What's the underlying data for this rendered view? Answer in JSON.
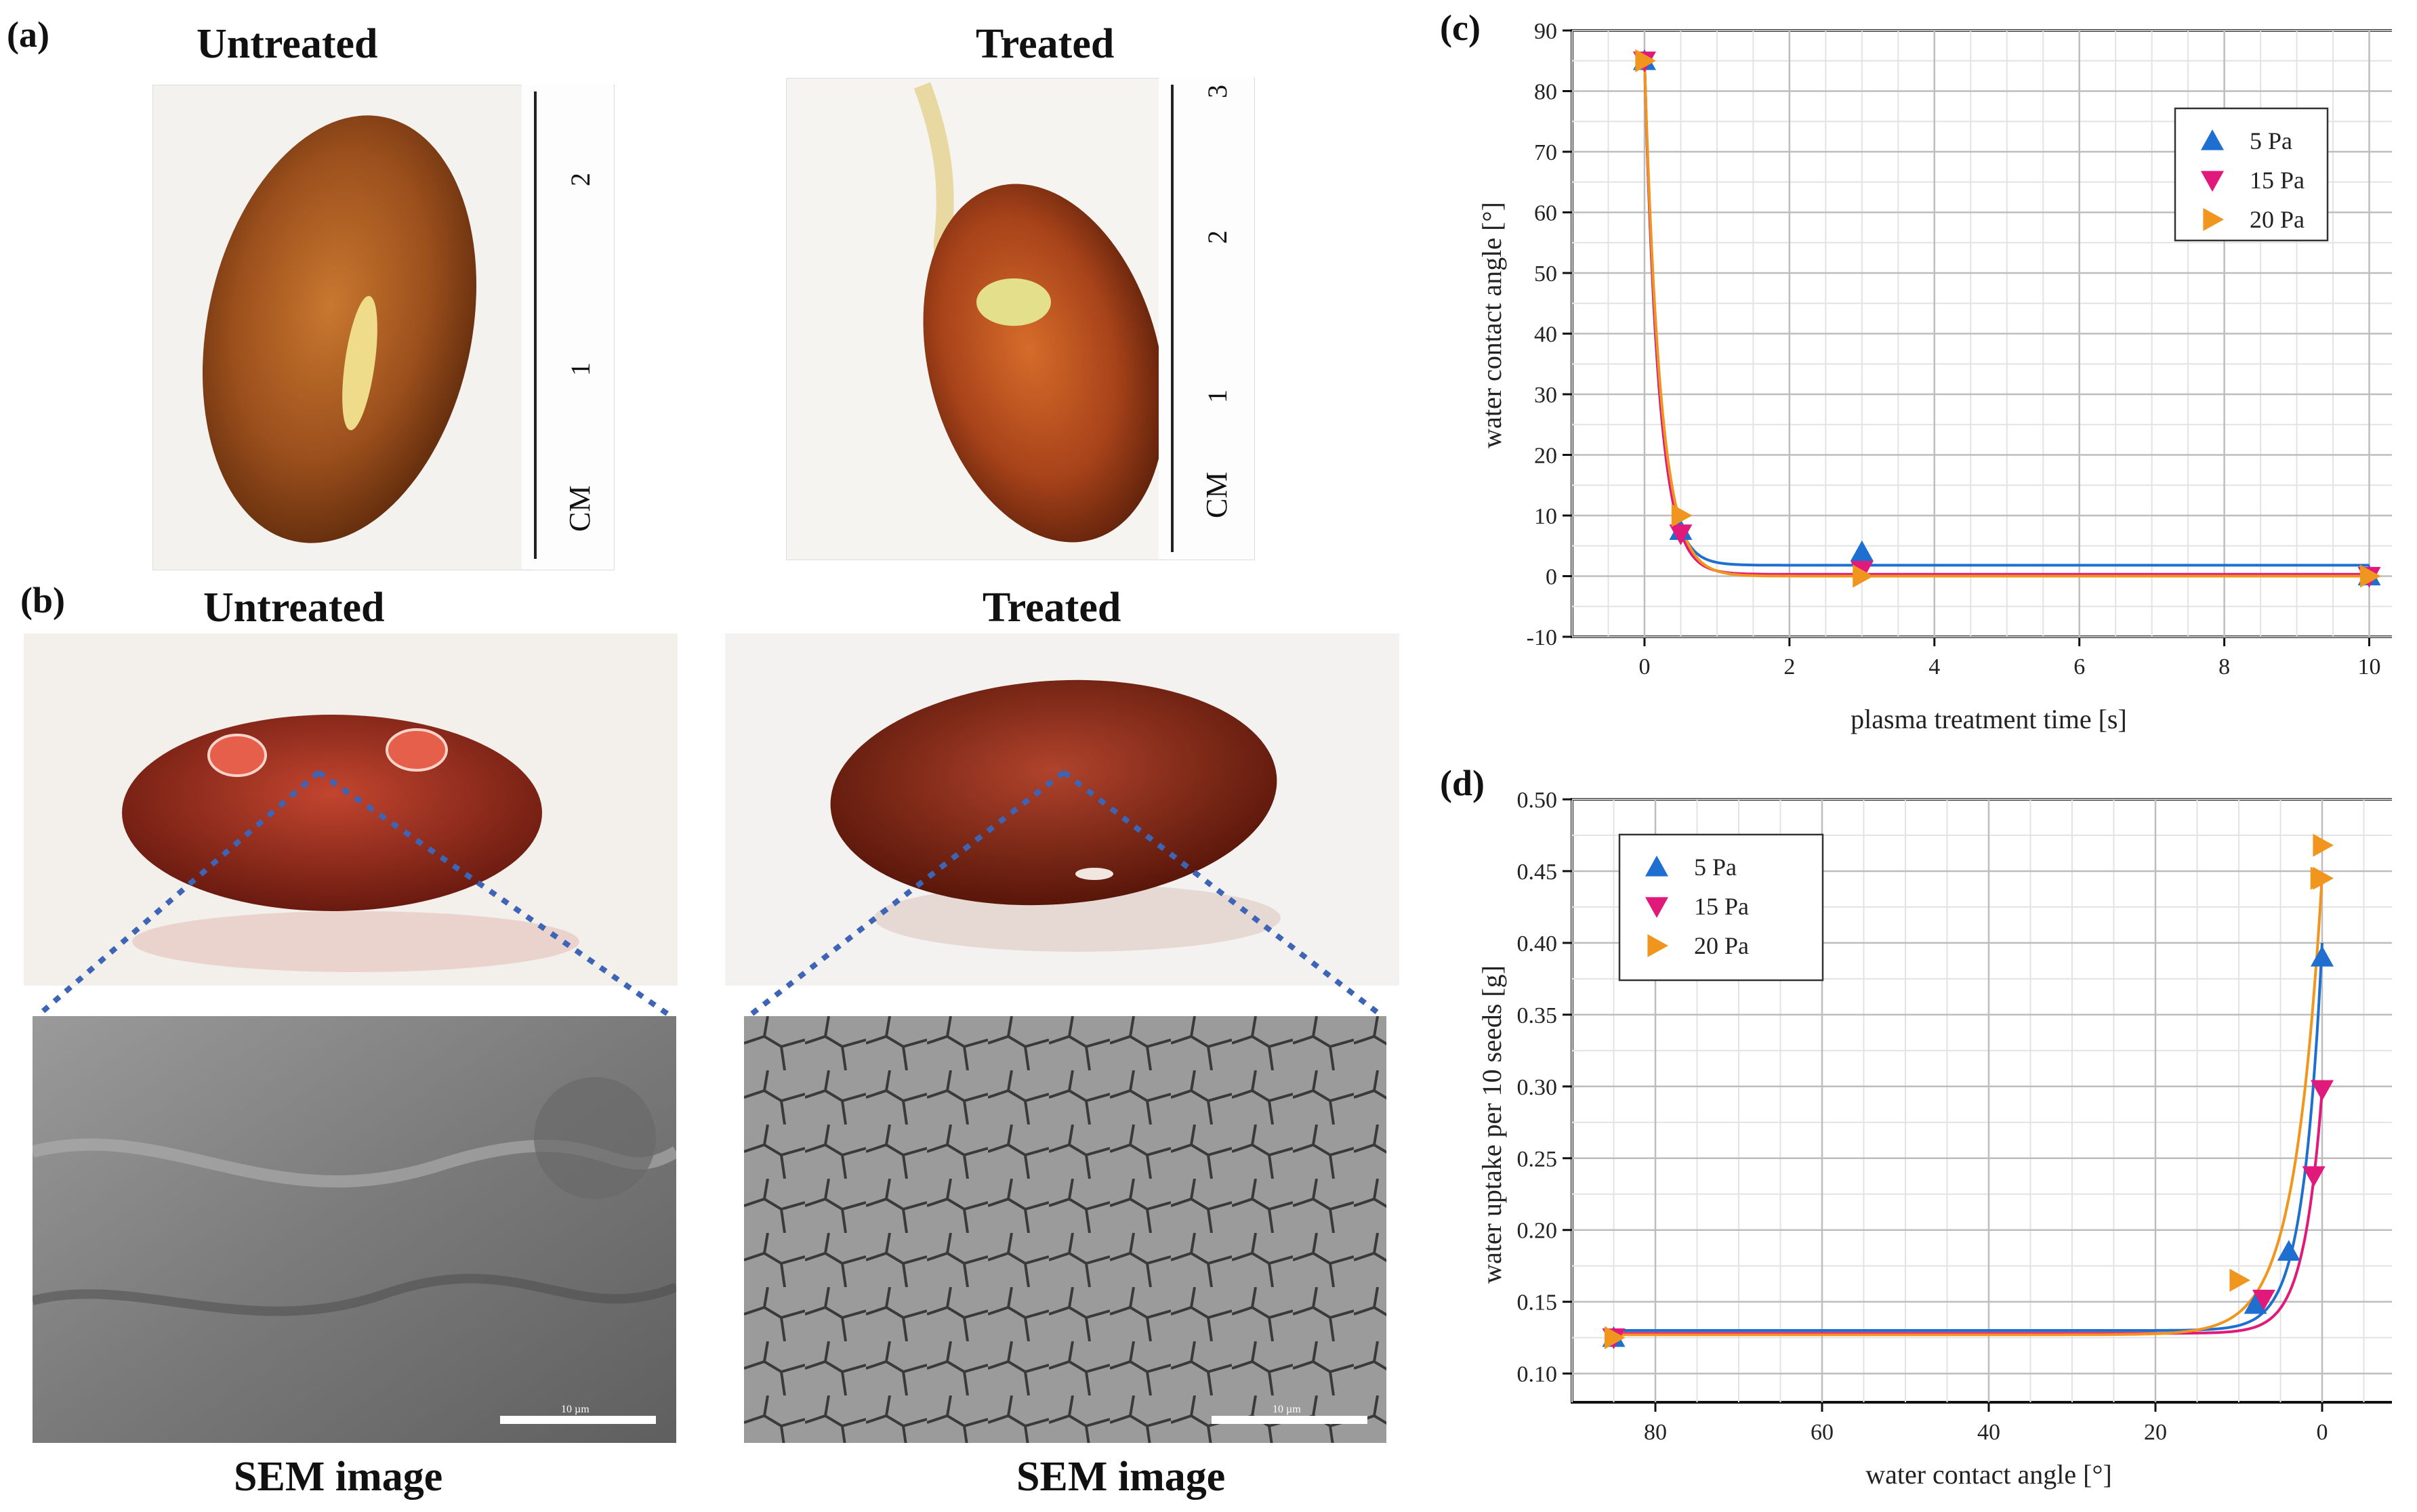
{
  "panels": {
    "a": {
      "letter": "(a)",
      "left_title": "Untreated",
      "right_title": "Treated"
    },
    "b": {
      "letter": "(b)",
      "left_title": "Untreated",
      "right_title": "Treated",
      "left_caption": "SEM image",
      "right_caption": "SEM image"
    },
    "c": {
      "letter": "(c)"
    },
    "d": {
      "letter": "(d)"
    }
  },
  "ruler": {
    "unit_label": "CM",
    "left_ticks": [
      "1",
      "2"
    ],
    "right_ticks": [
      "1",
      "2",
      "3"
    ]
  },
  "sem": {
    "scale_text": "10 µm"
  },
  "colors": {
    "s5": "#1f6fd1",
    "s15": "#e0197a",
    "s20": "#f0951e",
    "grid": "#bdbdbd",
    "dotline": "#3d64b5"
  },
  "chart_data": [
    {
      "type": "scatter",
      "id": "c",
      "xlabel": "plasma treatment time [s]",
      "ylabel": "water contact angle [°]",
      "xlim": [
        -1,
        10.5
      ],
      "ylim": [
        -10,
        90
      ],
      "xticks": [
        0,
        2,
        4,
        6,
        8,
        10
      ],
      "yticks": [
        -10,
        0,
        10,
        20,
        30,
        40,
        50,
        60,
        70,
        80,
        90
      ],
      "grid": true,
      "legend_position": "top-right",
      "series": [
        {
          "name": "5 Pa",
          "marker": "triangle-up",
          "color": "#1f6fd1",
          "x": [
            0,
            0.5,
            3,
            10
          ],
          "y": [
            85,
            7.5,
            4,
            0
          ],
          "fit": {
            "plateau": 1.8,
            "start": 85,
            "rate": 5.2
          }
        },
        {
          "name": "15 Pa",
          "marker": "triangle-down",
          "color": "#e0197a",
          "x": [
            0,
            0.5,
            3,
            10
          ],
          "y": [
            85,
            7,
            1,
            0
          ],
          "fit": {
            "plateau": 0.3,
            "start": 85,
            "rate": 5.0
          }
        },
        {
          "name": "20 Pa",
          "marker": "triangle-right",
          "color": "#f0951e",
          "x": [
            0,
            0.5,
            3,
            10
          ],
          "y": [
            85,
            10,
            0,
            0
          ],
          "fit": {
            "plateau": 0,
            "start": 85,
            "rate": 4.6
          }
        }
      ]
    },
    {
      "type": "scatter",
      "id": "d",
      "xlabel": "water contact angle [°]",
      "ylabel": "water uptake per 10 seeds [g]",
      "xlim": [
        90,
        -10
      ],
      "ylim": [
        0.08,
        0.5
      ],
      "xticks": [
        80,
        60,
        40,
        20,
        0
      ],
      "yticks": [
        0.1,
        0.15,
        0.2,
        0.25,
        0.3,
        0.35,
        0.4,
        0.45,
        0.5
      ],
      "ytick_labels": [
        "0.10",
        "0.15",
        "0.20",
        "0.25",
        "0.30",
        "0.35",
        "0.40",
        "0.45",
        "0.50"
      ],
      "grid": true,
      "legend_position": "top-left",
      "series": [
        {
          "name": "5 Pa",
          "marker": "triangle-up",
          "color": "#1f6fd1",
          "x": [
            85,
            8,
            4,
            0
          ],
          "y": [
            0.125,
            0.148,
            0.185,
            0.39
          ],
          "fit": {
            "base": 0.13,
            "amp": 0.27,
            "decay": 2.3
          }
        },
        {
          "name": "15 Pa",
          "marker": "triangle-down",
          "color": "#e0197a",
          "x": [
            85,
            7,
            1,
            0
          ],
          "y": [
            0.125,
            0.152,
            0.238,
            0.298
          ],
          "fit": {
            "base": 0.128,
            "amp": 0.17,
            "decay": 2.2
          }
        },
        {
          "name": "20 Pa",
          "marker": "triangle-right",
          "color": "#f0951e",
          "x": [
            85,
            10,
            0.3,
            0,
            0
          ],
          "y": [
            0.125,
            0.165,
            0.445,
            0.468,
            0.445
          ],
          "fit": {
            "base": 0.127,
            "amp": 0.32,
            "decay": 3.3
          }
        }
      ]
    }
  ]
}
